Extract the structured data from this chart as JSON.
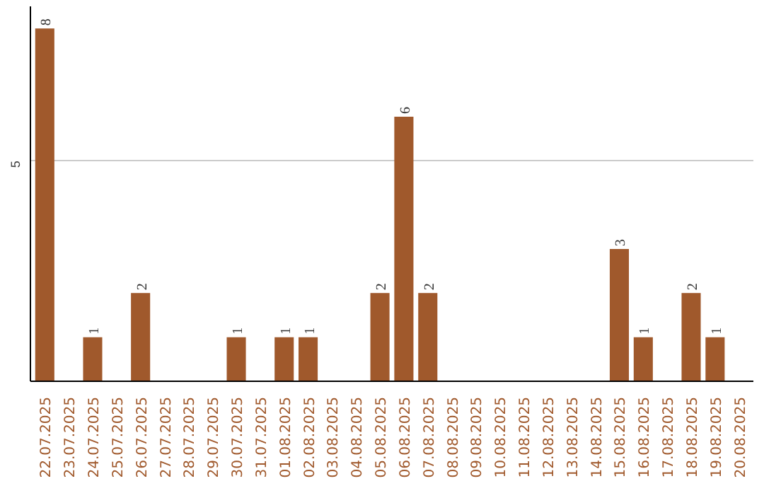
{
  "chart_data": {
    "type": "bar",
    "categories": [
      "22.07.2025",
      "23.07.2025",
      "24.07.2025",
      "25.07.2025",
      "26.07.2025",
      "27.07.2025",
      "28.07.2025",
      "29.07.2025",
      "30.07.2025",
      "31.07.2025",
      "01.08.2025",
      "02.08.2025",
      "03.08.2025",
      "04.08.2025",
      "05.08.2025",
      "06.08.2025",
      "07.08.2025",
      "08.08.2025",
      "09.08.2025",
      "10.08.2025",
      "11.08.2025",
      "12.08.2025",
      "13.08.2025",
      "14.08.2025",
      "15.08.2025",
      "16.08.2025",
      "17.08.2025",
      "18.08.2025",
      "19.08.2025",
      "20.08.2025"
    ],
    "values": [
      8,
      0,
      1,
      0,
      2,
      0,
      0,
      0,
      1,
      0,
      1,
      1,
      0,
      0,
      2,
      6,
      2,
      0,
      0,
      0,
      0,
      0,
      0,
      0,
      3,
      1,
      0,
      2,
      1,
      0
    ],
    "value_labels": [
      "8",
      null,
      "1",
      null,
      "2",
      null,
      null,
      null,
      "1",
      null,
      "1",
      "1",
      null,
      null,
      "2",
      "6",
      "2",
      null,
      null,
      null,
      null,
      null,
      null,
      null,
      "3",
      "1",
      null,
      "2",
      "1",
      null
    ],
    "color": "#a0592c",
    "ylim": [
      0,
      8.5
    ],
    "yticks": [
      5
    ],
    "grid": "y"
  }
}
